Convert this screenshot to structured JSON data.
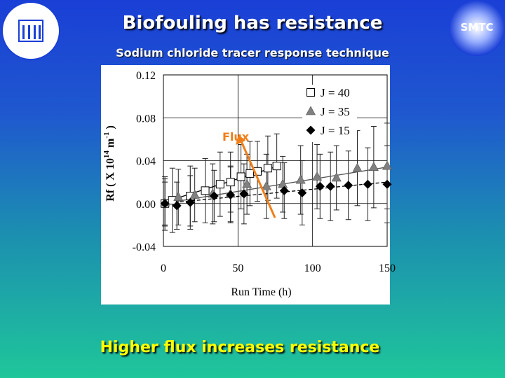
{
  "slide": {
    "title": "Biofouling has resistance",
    "subtitle": "Sodium chloride tracer response technique",
    "footer": "Higher flux increases resistance",
    "logo_right_text": "SMTC",
    "annotation": "Flux",
    "colors": {
      "title": "#ffffff",
      "footer": "#ffff00",
      "annotation": "#f07f1a",
      "series_open_square": "#ffffff",
      "series_triangle": "#808080",
      "series_diamond": "#000000"
    },
    "icons": {
      "logo_left": "unesco-membrane-logo",
      "logo_right": "smtc-logo"
    }
  },
  "chart_data": {
    "type": "scatter",
    "xlabel": "Run Time (h)",
    "ylabel": "Rf ( X 10",
    "ylabel_exponent": "14",
    "ylabel_unit": "m",
    "ylabel_unit_exponent": "-1",
    "xlim": [
      0,
      150
    ],
    "ylim": [
      -0.04,
      0.12
    ],
    "xticks": [
      "0",
      "50",
      "100",
      "150"
    ],
    "yticks": [
      "0.12",
      "0.08",
      "0.04",
      "0.00",
      "-0.04"
    ],
    "xtick_values": [
      0,
      50,
      100,
      150
    ],
    "ytick_values": [
      0.12,
      0.08,
      0.04,
      0.0,
      -0.04
    ],
    "grid": true,
    "legend_placement": "top-right",
    "series": [
      {
        "name": "J = 40",
        "marker": "open-square",
        "points": [
          [
            1,
            0.0
          ],
          [
            6,
            0.003
          ],
          [
            18,
            0.007
          ],
          [
            28,
            0.012
          ],
          [
            38,
            0.018
          ],
          [
            45,
            0.02
          ],
          [
            52,
            0.025
          ],
          [
            58,
            0.028
          ],
          [
            63,
            0.03
          ],
          [
            70,
            0.033
          ],
          [
            76,
            0.035
          ]
        ],
        "err": [
          0.025,
          0.03,
          0.028,
          0.03,
          0.03,
          0.028,
          0.03,
          0.03,
          0.028,
          0.03,
          0.03
        ],
        "trend": [
          [
            0,
            0.001
          ],
          [
            77,
            0.035
          ]
        ]
      },
      {
        "name": "J = 35",
        "marker": "filled-triangle",
        "points": [
          [
            1,
            0.001
          ],
          [
            10,
            0.006
          ],
          [
            21,
            0.008
          ],
          [
            33,
            0.009
          ],
          [
            45,
            0.009
          ],
          [
            56,
            0.018
          ],
          [
            69,
            0.016
          ],
          [
            80,
            0.018
          ],
          [
            92,
            0.022
          ],
          [
            103,
            0.025
          ],
          [
            116,
            0.024
          ],
          [
            130,
            0.033
          ],
          [
            141,
            0.034
          ],
          [
            150,
            0.035
          ]
        ],
        "err": [
          0.022,
          0.026,
          0.025,
          0.028,
          0.026,
          0.028,
          0.03,
          0.026,
          0.032,
          0.03,
          0.03,
          0.035,
          0.038,
          0.04
        ],
        "trend": [
          [
            0,
            0.0
          ],
          [
            150,
            0.034
          ]
        ]
      },
      {
        "name": "J = 15",
        "marker": "filled-diamond",
        "points": [
          [
            1,
            0.0
          ],
          [
            9,
            -0.002
          ],
          [
            18,
            0.001
          ],
          [
            34,
            0.007
          ],
          [
            45,
            0.008
          ],
          [
            54,
            0.009
          ],
          [
            81,
            0.012
          ],
          [
            93,
            0.01
          ],
          [
            105,
            0.016
          ],
          [
            112,
            0.016
          ],
          [
            124,
            0.017
          ],
          [
            137,
            0.018
          ],
          [
            150,
            0.018
          ]
        ],
        "err": [
          0.02,
          0.022,
          0.025,
          0.024,
          0.026,
          0.028,
          0.026,
          0.03,
          0.03,
          0.032,
          0.032,
          0.034,
          0.036
        ],
        "trend": [
          [
            0,
            0.0
          ],
          [
            150,
            0.02
          ]
        ]
      }
    ]
  }
}
